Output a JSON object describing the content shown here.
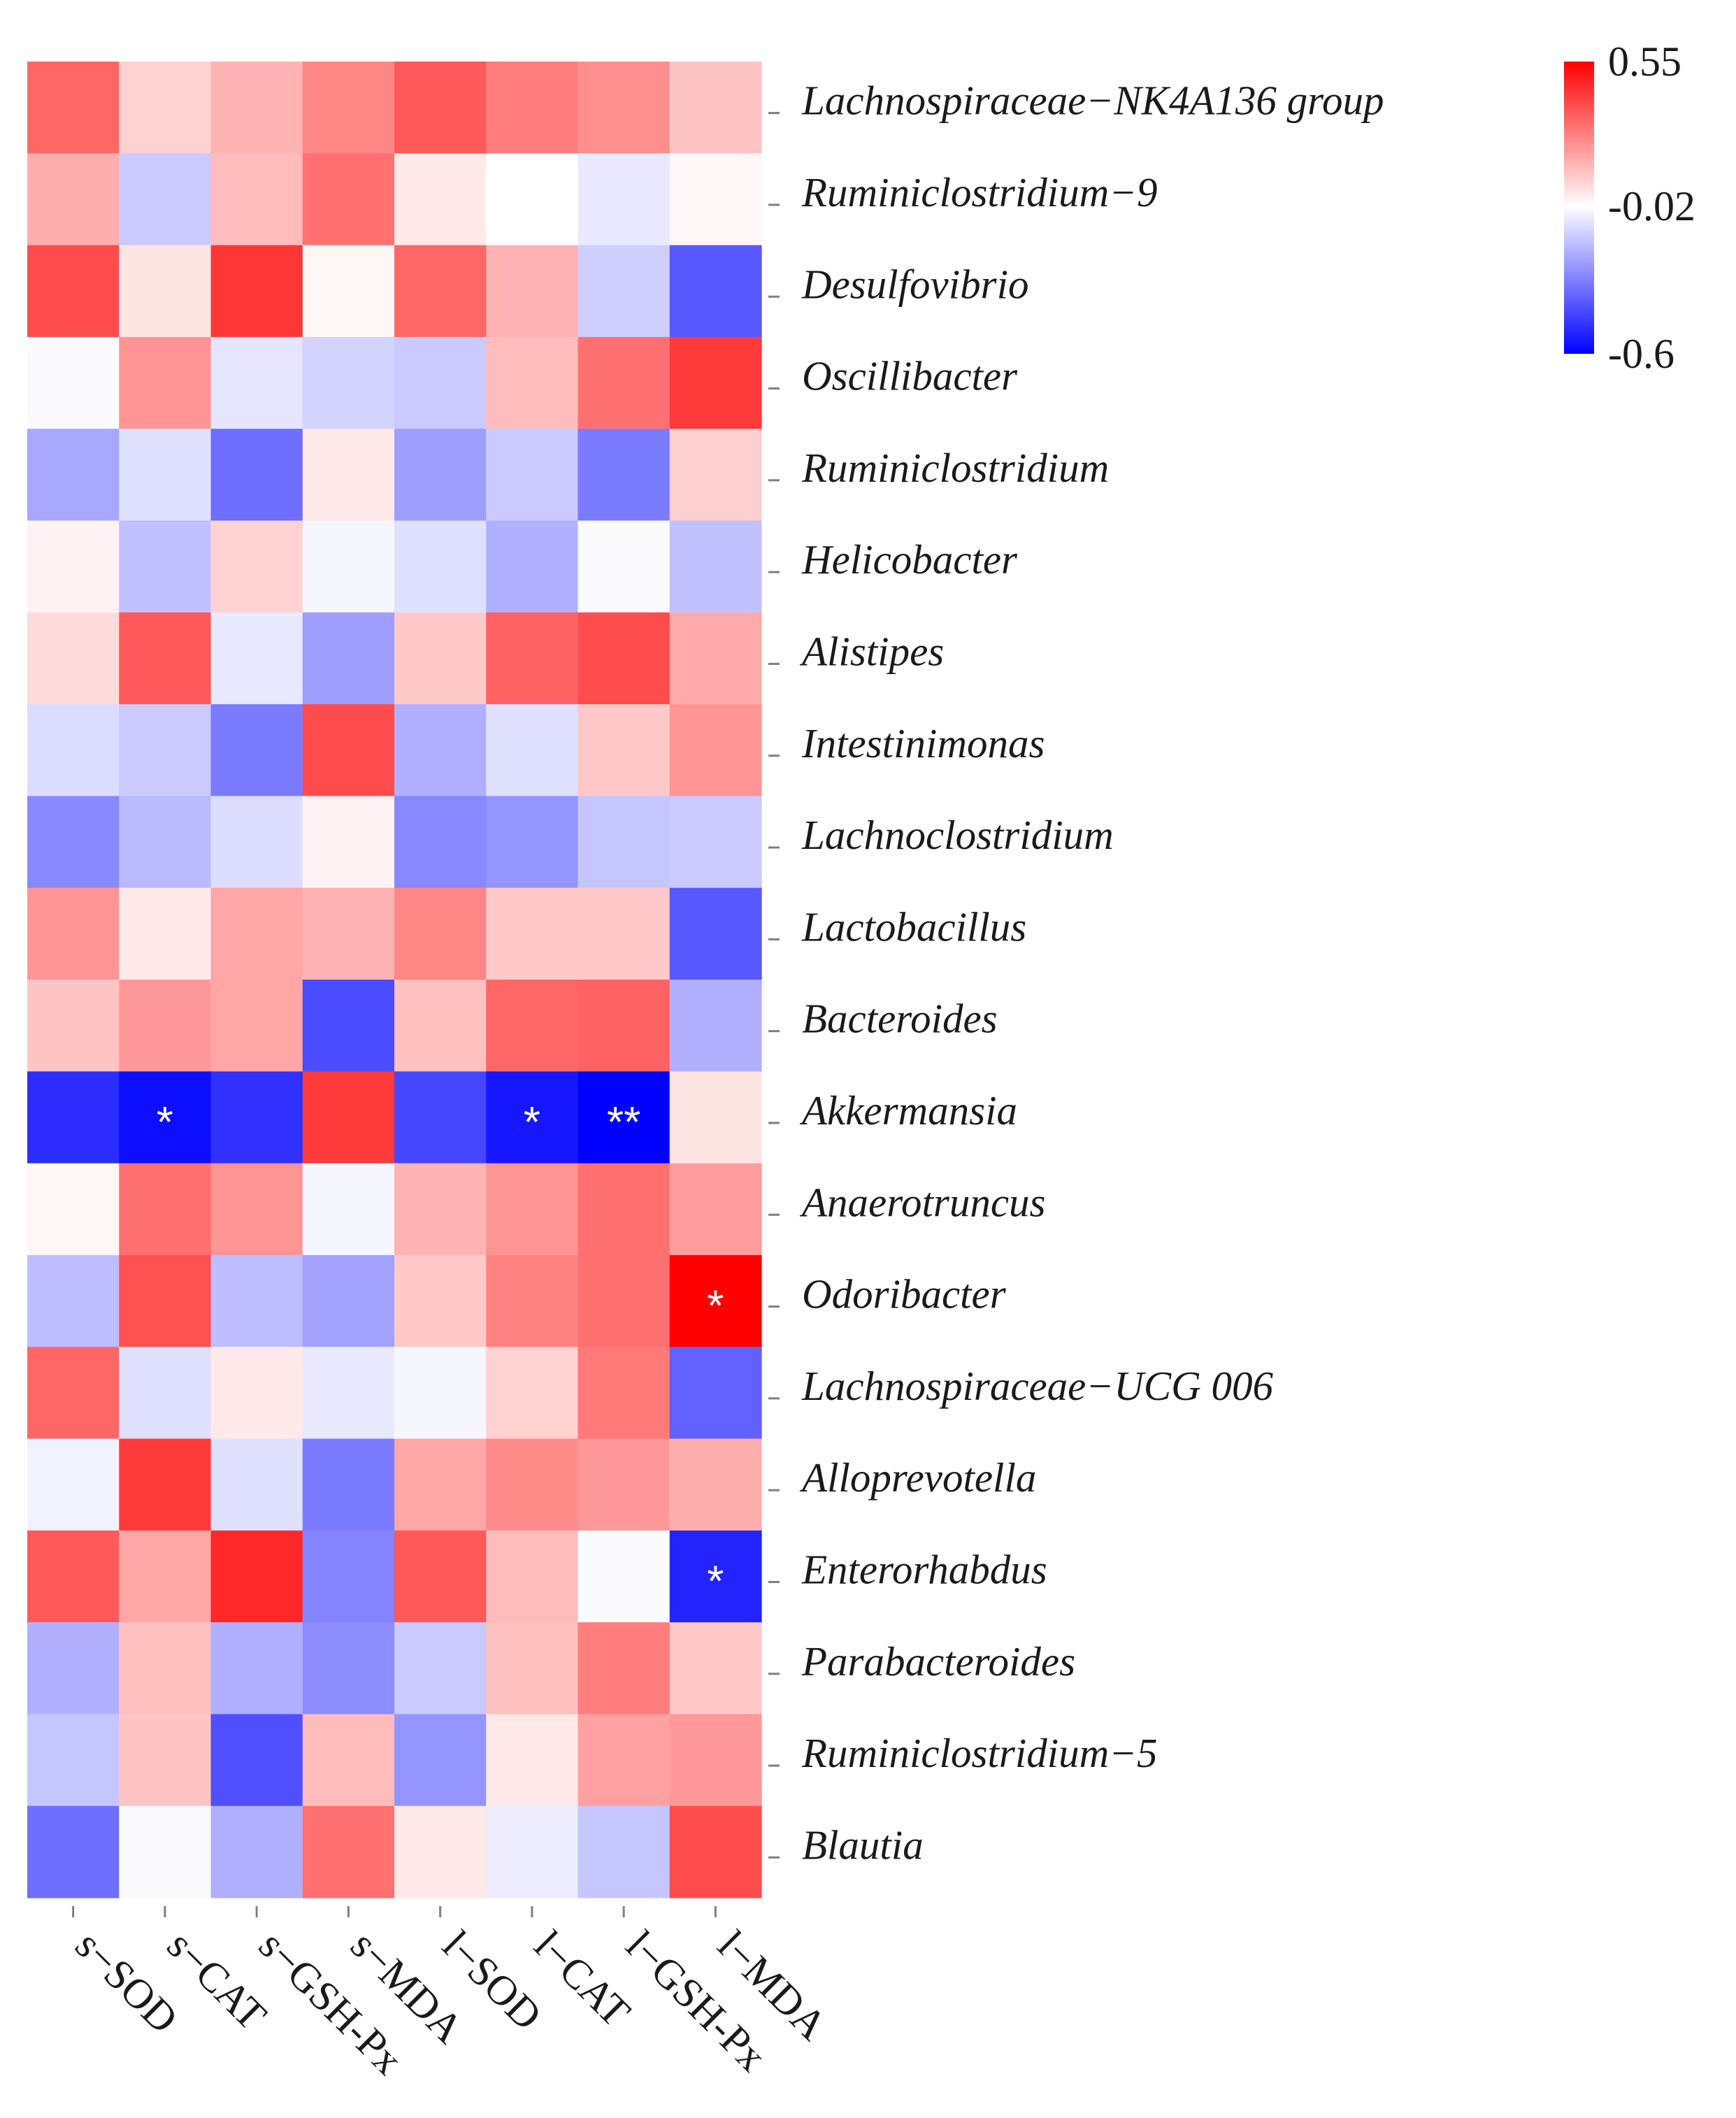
{
  "chart_data": {
    "type": "heatmap",
    "title": "",
    "xlabel": "",
    "ylabel": "",
    "columns": [
      "s−SOD",
      "s−CAT",
      "s−GSH-Px",
      "s−MDA",
      "l−SOD",
      "l−CAT",
      "l−GSH-Px",
      "l−MDA"
    ],
    "rows": [
      "Lachnospiraceae−NK4A136 group",
      "Ruminiclostridium−9",
      "Desulfovibrio",
      "Oscillibacter",
      "Ruminiclostridium",
      "Helicobacter",
      "Alistipes",
      "Intestinimonas",
      "Lachnoclostridium",
      "Lactobacillus",
      "Bacteroides",
      "Akkermansia",
      "Anaerotruncus",
      "Odoribacter",
      "Lachnospiraceae−UCG 006",
      "Alloprevotella",
      "Enterorhabdus",
      "Parabacteroides",
      "Ruminiclostridium−5",
      "Blautia"
    ],
    "values": [
      [
        0.32,
        0.08,
        0.15,
        0.25,
        0.35,
        0.27,
        0.23,
        0.11
      ],
      [
        0.16,
        -0.14,
        0.13,
        0.3,
        0.03,
        -0.02,
        -0.07,
        0.0
      ],
      [
        0.38,
        0.04,
        0.43,
        0.0,
        0.32,
        0.15,
        -0.13,
        -0.4
      ],
      [
        -0.03,
        0.22,
        -0.08,
        -0.12,
        -0.14,
        0.13,
        0.3,
        0.42
      ],
      [
        -0.22,
        -0.09,
        -0.35,
        0.03,
        -0.24,
        -0.14,
        -0.32,
        0.09
      ],
      [
        0.01,
        -0.16,
        0.08,
        -0.04,
        -0.09,
        -0.2,
        -0.03,
        -0.16
      ],
      [
        0.06,
        0.35,
        -0.07,
        -0.24,
        0.1,
        0.33,
        0.38,
        0.17
      ],
      [
        -0.1,
        -0.14,
        -0.32,
        0.38,
        -0.2,
        -0.09,
        0.1,
        0.22
      ],
      [
        -0.29,
        -0.18,
        -0.1,
        0.01,
        -0.29,
        -0.26,
        -0.15,
        -0.14
      ],
      [
        0.22,
        0.03,
        0.18,
        0.15,
        0.25,
        0.1,
        0.1,
        -0.4
      ],
      [
        0.11,
        0.21,
        0.18,
        -0.43,
        0.12,
        0.32,
        0.33,
        -0.2
      ],
      [
        -0.5,
        -0.57,
        -0.49,
        0.42,
        -0.44,
        -0.55,
        -0.6,
        0.04
      ],
      [
        0.0,
        0.3,
        0.22,
        -0.04,
        0.15,
        0.22,
        0.3,
        0.2
      ],
      [
        -0.17,
        0.37,
        -0.17,
        -0.23,
        0.1,
        0.26,
        0.3,
        0.55
      ],
      [
        0.32,
        -0.09,
        0.03,
        -0.07,
        -0.04,
        0.08,
        0.28,
        -0.38
      ],
      [
        -0.05,
        0.42,
        -0.09,
        -0.32,
        0.18,
        0.24,
        0.21,
        0.16
      ],
      [
        0.35,
        0.18,
        0.46,
        -0.3,
        0.35,
        0.13,
        -0.03,
        -0.52
      ],
      [
        -0.2,
        0.12,
        -0.2,
        -0.28,
        -0.14,
        0.12,
        0.27,
        0.1
      ],
      [
        -0.15,
        0.11,
        -0.42,
        0.13,
        -0.26,
        0.03,
        0.19,
        0.21
      ],
      [
        -0.35,
        -0.03,
        -0.2,
        0.3,
        0.03,
        -0.06,
        -0.15,
        0.38
      ]
    ],
    "significance": [
      [
        "",
        "",
        "",
        "",
        "",
        "",
        "",
        ""
      ],
      [
        "",
        "",
        "",
        "",
        "",
        "",
        "",
        ""
      ],
      [
        "",
        "",
        "",
        "",
        "",
        "",
        "",
        ""
      ],
      [
        "",
        "",
        "",
        "",
        "",
        "",
        "",
        ""
      ],
      [
        "",
        "",
        "",
        "",
        "",
        "",
        "",
        ""
      ],
      [
        "",
        "",
        "",
        "",
        "",
        "",
        "",
        ""
      ],
      [
        "",
        "",
        "",
        "",
        "",
        "",
        "",
        ""
      ],
      [
        "",
        "",
        "",
        "",
        "",
        "",
        "",
        ""
      ],
      [
        "",
        "",
        "",
        "",
        "",
        "",
        "",
        ""
      ],
      [
        "",
        "",
        "",
        "",
        "",
        "",
        "",
        ""
      ],
      [
        "",
        "",
        "",
        "",
        "",
        "",
        "",
        ""
      ],
      [
        "",
        "*",
        "",
        "",
        "",
        "*",
        "**",
        ""
      ],
      [
        "",
        "",
        "",
        "",
        "",
        "",
        "",
        ""
      ],
      [
        "",
        "",
        "",
        "",
        "",
        "",
        "",
        "*"
      ],
      [
        "",
        "",
        "",
        "",
        "",
        "",
        "",
        ""
      ],
      [
        "",
        "",
        "",
        "",
        "",
        "",
        "",
        ""
      ],
      [
        "",
        "",
        "",
        "",
        "",
        "",
        "",
        "*"
      ],
      [
        "",
        "",
        "",
        "",
        "",
        "",
        "",
        ""
      ],
      [
        "",
        "",
        "",
        "",
        "",
        "",
        "",
        ""
      ],
      [
        "",
        "",
        "",
        "",
        "",
        "",
        "",
        ""
      ]
    ],
    "color_scale": {
      "min": -0.6,
      "mid": -0.02,
      "max": 0.55,
      "low_color": "#0000ff",
      "mid_color": "#ffffff",
      "high_color": "#ff0000",
      "tick_labels": [
        "0.55",
        "-0.02",
        "-0.6"
      ]
    },
    "legend_placement": "top-right",
    "grid": false
  }
}
